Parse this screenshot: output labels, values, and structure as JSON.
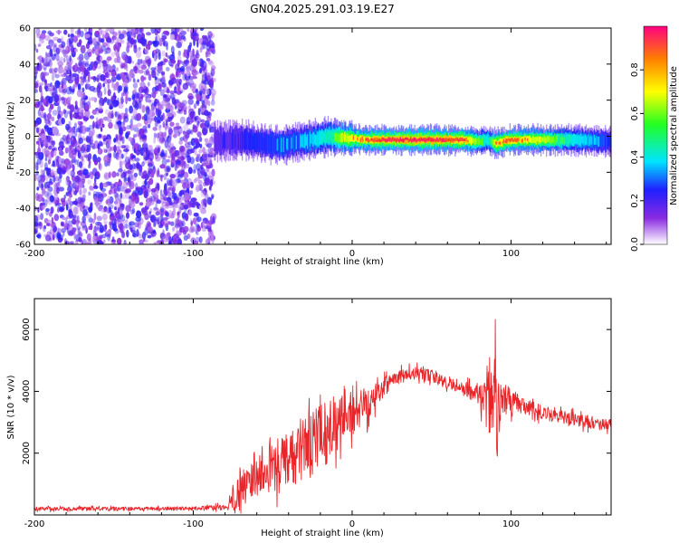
{
  "title": "GN04.2025.291.03.19.E27",
  "colors": {
    "snr_line": "#e8262a",
    "frame": "#000000",
    "background": "#ffffff",
    "noise": "#7a1fe0"
  },
  "chart_data": [
    {
      "type": "heatmap",
      "xlabel": "Height of straight line (km)",
      "ylabel": "Frequency (Hz)",
      "xlim": [
        -200,
        163
      ],
      "ylim": [
        -60,
        60
      ],
      "x_ticks": [
        -200,
        -100,
        0,
        100
      ],
      "y_ticks": [
        -60,
        -40,
        -20,
        0,
        20,
        40,
        60
      ],
      "noise_region": {
        "x_from": -200,
        "x_to": -87,
        "amplitude_range": [
          0.05,
          0.25
        ]
      },
      "signal_ridge": {
        "x": [
          -87,
          -70,
          -55,
          -45,
          -35,
          -25,
          -15,
          -5,
          10,
          30,
          50,
          70,
          80,
          85,
          90,
          100,
          120,
          140,
          163
        ],
        "freq_hz": [
          -3,
          -2,
          -4,
          -5,
          -3,
          -2,
          0,
          -1,
          -2,
          -2,
          -2,
          -2,
          -3,
          -2,
          -4,
          -2,
          -2,
          -2,
          -3
        ],
        "amplitude": [
          0.35,
          0.4,
          0.45,
          0.5,
          0.5,
          0.55,
          0.65,
          0.8,
          0.9,
          0.95,
          0.95,
          0.9,
          0.7,
          0.6,
          0.85,
          0.9,
          0.8,
          0.6,
          0.45
        ]
      },
      "colorbar": {
        "label": "Normalized spectral amplitude",
        "range": [
          0,
          1
        ],
        "ticks": [
          "0.0",
          "0.2",
          "0.4",
          "0.6",
          "0.8"
        ]
      }
    },
    {
      "type": "line",
      "xlabel": "Height of straight line (km)",
      "ylabel": "SNR (10 * v/v)",
      "xlim": [
        -200,
        163
      ],
      "ylim": [
        0,
        7000
      ],
      "x_ticks": [
        -200,
        -100,
        0,
        100
      ],
      "y_ticks": [
        2000,
        4000,
        6000
      ],
      "envelope": {
        "x": [
          -200,
          -150,
          -100,
          -80,
          -75,
          -70,
          -60,
          -50,
          -40,
          -30,
          -20,
          -10,
          0,
          10,
          20,
          30,
          40,
          50,
          60,
          70,
          80,
          85,
          88,
          90,
          93,
          95,
          100,
          110,
          120,
          130,
          140,
          150,
          163
        ],
        "mean": [
          200,
          200,
          210,
          250,
          500,
          900,
          1200,
          1500,
          1800,
          2100,
          2500,
          3000,
          3300,
          3700,
          4200,
          4500,
          4600,
          4500,
          4300,
          4100,
          3900,
          3700,
          3400,
          3200,
          3500,
          3700,
          3700,
          3500,
          3300,
          3200,
          3100,
          3000,
          2900
        ],
        "spread": [
          100,
          100,
          100,
          150,
          700,
          900,
          1000,
          1300,
          1500,
          1800,
          1800,
          1500,
          1200,
          1000,
          600,
          400,
          350,
          350,
          350,
          400,
          600,
          1500,
          3000,
          3500,
          1200,
          900,
          700,
          400,
          400,
          350,
          350,
          350,
          350
        ]
      }
    }
  ]
}
